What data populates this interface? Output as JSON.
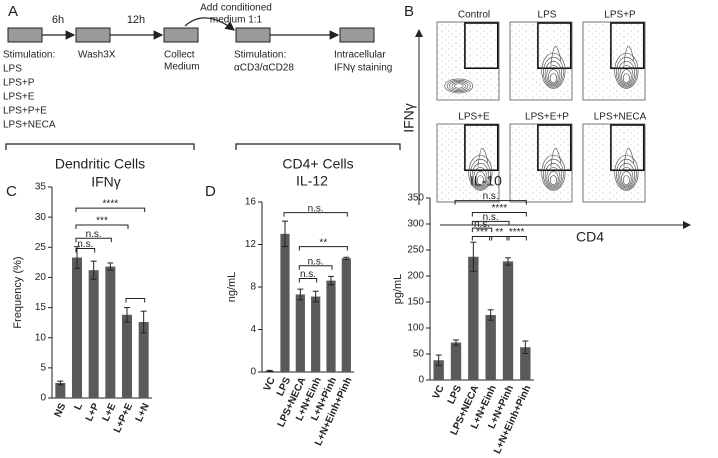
{
  "panel_labels": [
    "A",
    "B",
    "C",
    "D"
  ],
  "workflow": {
    "intervals": [
      "6h",
      "12h"
    ],
    "transfer": [
      "Add conditioned",
      "medium 1:1"
    ],
    "stimulation": [
      "Stimulation:",
      "LPS",
      "LPS+P",
      "LPS+E",
      "LPS+P+E",
      "LPS+NECA"
    ],
    "wash": "Wash3X",
    "collect": [
      "Collect",
      "Medium"
    ],
    "t_stimulation": [
      "Stimulation:",
      "αCD3/αCD28"
    ],
    "staining": [
      "Intracellular",
      "IFNγ staining"
    ],
    "groups": [
      "Dendritic Cells",
      "CD4+ Cells"
    ]
  },
  "flow": {
    "plots": [
      "Control",
      "LPS",
      "LPS+P",
      "LPS+E",
      "LPS+E+P",
      "LPS+NECA"
    ],
    "y_label": "IFNγ",
    "x_label": "CD4"
  },
  "chart_data": [
    {
      "type": "bar",
      "title": "IFNγ",
      "y_label": "Frequency (%)",
      "categories": [
        "NS",
        "L",
        "L+P",
        "L+E",
        "L+P+E",
        "L+N"
      ],
      "values": [
        2.5,
        23.3,
        21.2,
        21.8,
        13.8,
        12.6
      ],
      "errors": [
        0.3,
        1.8,
        1.5,
        0.6,
        1.2,
        1.8
      ],
      "color": "#5a5a5a",
      "ylim": [
        0,
        35
      ],
      "yticks": [
        0,
        5,
        10,
        15,
        20,
        25,
        30,
        35
      ],
      "brackets": [
        {
          "from": 1,
          "to": 5,
          "y": 31.5,
          "label": "****"
        },
        {
          "from": 1,
          "to": 4,
          "y": 28.7,
          "label": "***"
        },
        {
          "from": 1,
          "to": 3,
          "y": 26.5,
          "label": "n.s."
        },
        {
          "from": 1,
          "to": 2,
          "y": 24.8,
          "label": "n.s."
        },
        {
          "from": 4,
          "to": 5,
          "y": 16.5
        }
      ]
    },
    {
      "type": "bar",
      "title": "IL-12",
      "y_label": "ng/mL",
      "categories": [
        "VC",
        "LPS",
        "LPS+NECA",
        "L+N+Einh",
        "L+N+Pinh",
        "L+N+Einh+Pinh"
      ],
      "values": [
        0.1,
        13.0,
        7.3,
        7.1,
        8.6,
        10.7
      ],
      "errors": [
        0.05,
        1.2,
        0.5,
        0.5,
        0.4,
        0.1
      ],
      "color": "#5a5a5a",
      "ylim": [
        0,
        16
      ],
      "yticks": [
        0,
        4,
        8,
        12,
        16
      ],
      "brackets": [
        {
          "from": 1,
          "to": 5,
          "y": 15.0,
          "label": "n.s."
        },
        {
          "from": 2,
          "to": 5,
          "y": 11.8,
          "label": "**"
        },
        {
          "from": 2,
          "to": 4,
          "y": 10.0,
          "label": "n.s."
        },
        {
          "from": 2,
          "to": 3,
          "y": 8.8,
          "label": "n.s."
        }
      ]
    },
    {
      "type": "bar",
      "title": "IL-10",
      "y_label": "pg/mL",
      "categories": [
        "VC",
        "LPS",
        "LPS+NECA",
        "L+N+Einh",
        "L+N+Pinh",
        "L+N+Einh+Pinh"
      ],
      "values": [
        38,
        72,
        237,
        125,
        228,
        63
      ],
      "errors": [
        10,
        5,
        28,
        10,
        7,
        12
      ],
      "color": "#5a5a5a",
      "ylim": [
        0,
        350
      ],
      "yticks": [
        0,
        50,
        100,
        150,
        200,
        250,
        300,
        350
      ],
      "brackets": [
        {
          "from": 1,
          "to": 5,
          "y": 345,
          "label": "n.s."
        },
        {
          "from": 2,
          "to": 5,
          "y": 322,
          "label": "****"
        },
        {
          "from": 2,
          "to": 4,
          "y": 305,
          "label": "n.s."
        },
        {
          "from": 2,
          "to": 3,
          "y": 292,
          "label": "n.s."
        },
        {
          "from": 2,
          "to": 3,
          "y": 276,
          "label": "***"
        },
        {
          "from": 3,
          "to": 4,
          "y": 276,
          "label": "**"
        },
        {
          "from": 4,
          "to": 5,
          "y": 276,
          "label": "****"
        }
      ]
    }
  ]
}
